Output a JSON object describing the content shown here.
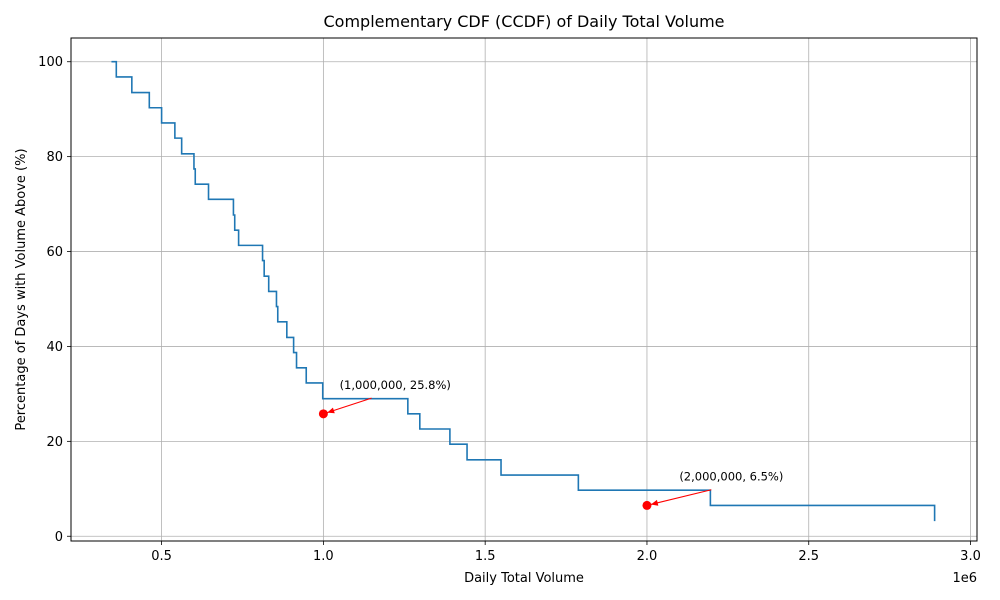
{
  "chart_data": {
    "type": "line",
    "title": "Complementary CDF (CCDF) of Daily Total Volume",
    "xlabel": "Daily Total Volume",
    "ylabel": "Percentage of Days with Volume Above (%)",
    "x_offset_label": "1e6",
    "xlim": [
      220000,
      3020000
    ],
    "ylim": [
      -1,
      105
    ],
    "x_ticks": [
      500000,
      1000000,
      1500000,
      2000000,
      2500000,
      3000000
    ],
    "x_tick_labels": [
      "0.5",
      "1.0",
      "1.5",
      "2.0",
      "2.5",
      "3.0"
    ],
    "y_ticks": [
      0,
      20,
      40,
      60,
      80,
      100
    ],
    "y_tick_labels": [
      "0",
      "20",
      "40",
      "60",
      "80",
      "100"
    ],
    "grid": true,
    "series": [
      {
        "color": "#1f77b4",
        "drawstyle": "steps-post",
        "points": [
          [
            345000,
            100.0
          ],
          [
            360000,
            96.8
          ],
          [
            408000,
            93.5
          ],
          [
            462000,
            90.3
          ],
          [
            500000,
            87.1
          ],
          [
            541000,
            83.9
          ],
          [
            562000,
            80.6
          ],
          [
            600000,
            77.4
          ],
          [
            604000,
            74.2
          ],
          [
            645000,
            71.0
          ],
          [
            722000,
            67.7
          ],
          [
            726000,
            64.5
          ],
          [
            738000,
            61.3
          ],
          [
            812000,
            58.1
          ],
          [
            817000,
            54.8
          ],
          [
            831000,
            51.6
          ],
          [
            855000,
            48.4
          ],
          [
            859000,
            45.2
          ],
          [
            887000,
            41.9
          ],
          [
            908000,
            38.7
          ],
          [
            917000,
            35.5
          ],
          [
            947000,
            32.3
          ],
          [
            998000,
            29.0
          ],
          [
            1261000,
            25.8
          ],
          [
            1298000,
            22.6
          ],
          [
            1391000,
            19.4
          ],
          [
            1444000,
            16.1
          ],
          [
            1549000,
            12.9
          ],
          [
            1788000,
            9.7
          ],
          [
            2196000,
            6.5
          ],
          [
            2889000,
            3.2
          ]
        ]
      }
    ],
    "annotations": [
      {
        "label": "(1,000,000, 25.8%)",
        "x": 1000000,
        "y": 25.8,
        "text_x": 1050000,
        "text_y": 31.0,
        "color": "#ff0000"
      },
      {
        "label": "(2,000,000, 6.5%)",
        "x": 2000000,
        "y": 6.5,
        "text_x": 2100000,
        "text_y": 11.7,
        "color": "#ff0000"
      }
    ]
  }
}
